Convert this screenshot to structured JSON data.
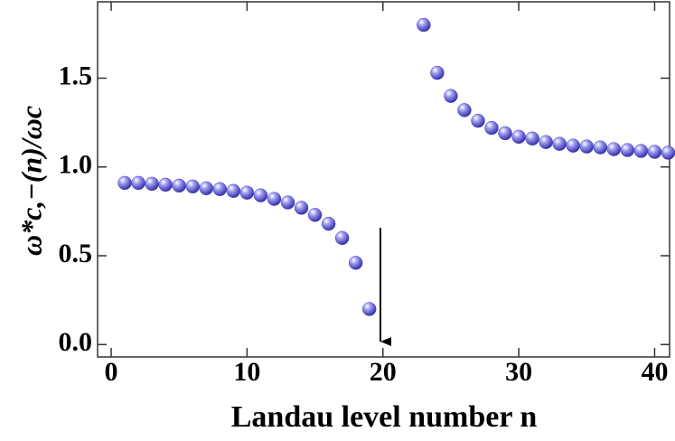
{
  "chart_data": {
    "type": "scatter",
    "x_label": "Landau level number n",
    "y_label": "ω*c,−(n)/ωc",
    "x": [
      1,
      2,
      3,
      4,
      5,
      6,
      7,
      8,
      9,
      10,
      11,
      12,
      13,
      14,
      15,
      16,
      17,
      18,
      19,
      23,
      24,
      25,
      26,
      27,
      28,
      29,
      30,
      31,
      32,
      33,
      34,
      35,
      36,
      37,
      38,
      39,
      40,
      41
    ],
    "values": [
      0.91,
      0.91,
      0.905,
      0.9,
      0.895,
      0.89,
      0.88,
      0.875,
      0.865,
      0.855,
      0.84,
      0.82,
      0.8,
      0.77,
      0.73,
      0.68,
      0.6,
      0.46,
      0.2,
      1.8,
      1.53,
      1.4,
      1.32,
      1.26,
      1.22,
      1.19,
      1.17,
      1.16,
      1.14,
      1.13,
      1.12,
      1.115,
      1.11,
      1.1,
      1.095,
      1.09,
      1.085,
      1.08
    ],
    "color": "#4a46c8",
    "xlim": [
      -1,
      41.1
    ],
    "ylim": [
      -0.07,
      1.93
    ],
    "xticks": [
      0,
      10,
      20,
      30,
      40
    ],
    "yticks": [
      {
        "value": 0,
        "label": "0.0"
      },
      0.5,
      {
        "value": 1,
        "label": "1.0"
      },
      1.5
    ]
  }
}
